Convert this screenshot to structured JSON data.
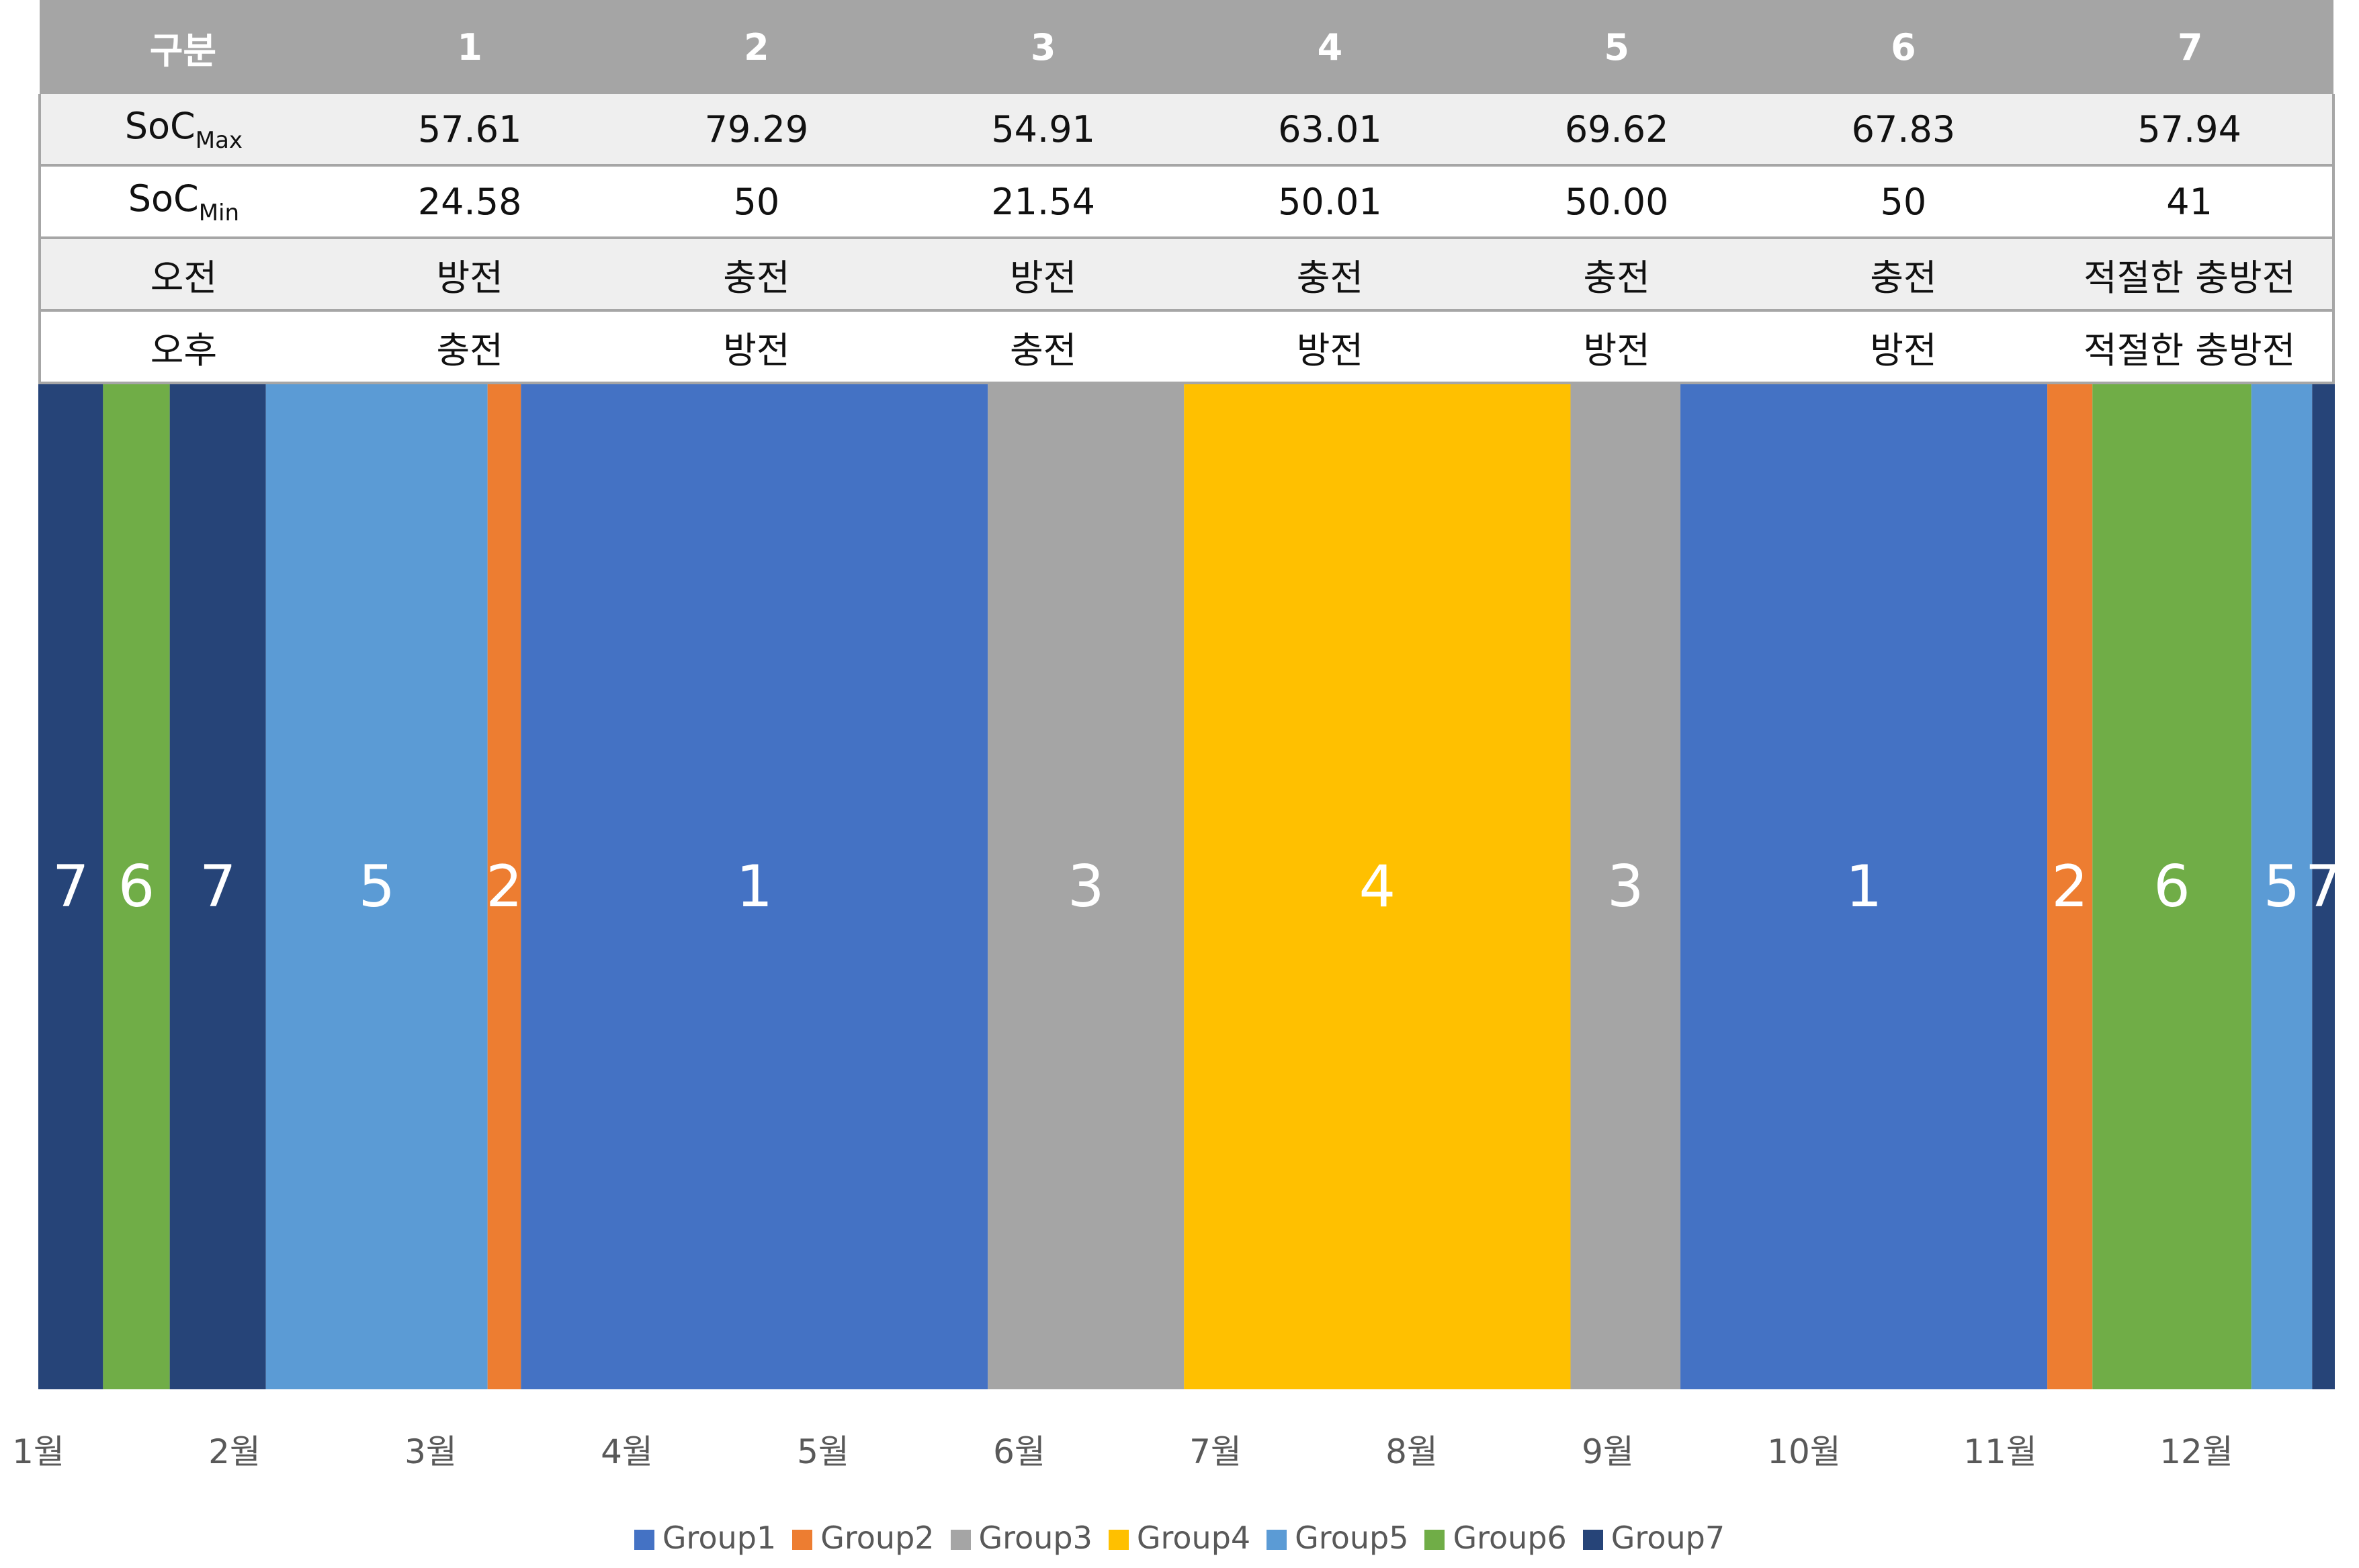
{
  "table": {
    "header": [
      "구분",
      "1",
      "2",
      "3",
      "4",
      "5",
      "6",
      "7"
    ],
    "rows": [
      {
        "label_main": "SoC",
        "label_sub": "Max",
        "cells": [
          "57.61",
          "79.29",
          "54.91",
          "63.01",
          "69.62",
          "67.83",
          "57.94"
        ]
      },
      {
        "label_main": "SoC",
        "label_sub": "Min",
        "cells": [
          "24.58",
          "50",
          "21.54",
          "50.01",
          "50.00",
          "50",
          "41"
        ]
      },
      {
        "label_main": "오전",
        "label_sub": "",
        "cells": [
          "방전",
          "충전",
          "방전",
          "충전",
          "충전",
          "충전",
          "적절한 충방전"
        ]
      },
      {
        "label_main": "오후",
        "label_sub": "",
        "cells": [
          "충전",
          "방전",
          "충전",
          "방전",
          "방전",
          "방전",
          "적절한 충방전"
        ]
      }
    ]
  },
  "chart_data": {
    "type": "area",
    "stacking": "100%",
    "x_unit": "month",
    "x_range": [
      1,
      12.75
    ],
    "xtick_labels": [
      "1월",
      "2월",
      "3월",
      "4월",
      "5월",
      "6월",
      "7월",
      "8월",
      "9월",
      "10월",
      "11월",
      "12월"
    ],
    "colors": {
      "1": "#4472c4",
      "2": "#ed7d31",
      "3": "#a5a5a5",
      "4": "#ffc000",
      "5": "#5b9bd5",
      "6": "#70ad47",
      "7": "#264478"
    },
    "segments": [
      {
        "group": "7",
        "label": "7",
        "start": 1.0,
        "end": 1.33
      },
      {
        "group": "6",
        "label": "6",
        "start": 1.33,
        "end": 1.67
      },
      {
        "group": "7",
        "label": "7",
        "start": 1.67,
        "end": 2.16
      },
      {
        "group": "5",
        "label": "5",
        "start": 2.16,
        "end": 3.29
      },
      {
        "group": "2",
        "label": "2",
        "start": 3.29,
        "end": 3.46
      },
      {
        "group": "1",
        "label": "1",
        "start": 3.46,
        "end": 5.84
      },
      {
        "group": "3",
        "label": "3",
        "start": 5.84,
        "end": 6.84
      },
      {
        "group": "4",
        "label": "4",
        "start": 6.84,
        "end": 8.81
      },
      {
        "group": "3",
        "label": "3",
        "start": 8.81,
        "end": 9.37
      },
      {
        "group": "1",
        "label": "1",
        "start": 9.37,
        "end": 11.24
      },
      {
        "group": "2",
        "label": "2",
        "start": 11.24,
        "end": 11.47
      },
      {
        "group": "6",
        "label": "6",
        "start": 11.47,
        "end": 12.28
      },
      {
        "group": "5",
        "label": "5",
        "start": 12.28,
        "end": 12.59
      },
      {
        "group": "7",
        "label": "7",
        "start": 12.59,
        "end": 12.75
      }
    ],
    "legend": {
      "position": "bottom",
      "entries": [
        {
          "name": "Group1",
          "color": "#4472c4"
        },
        {
          "name": "Group2",
          "color": "#ed7d31"
        },
        {
          "name": "Group3",
          "color": "#a5a5a5"
        },
        {
          "name": "Group4",
          "color": "#ffc000"
        },
        {
          "name": "Group5",
          "color": "#5b9bd5"
        },
        {
          "name": "Group6",
          "color": "#70ad47"
        },
        {
          "name": "Group7",
          "color": "#264478"
        }
      ]
    }
  }
}
